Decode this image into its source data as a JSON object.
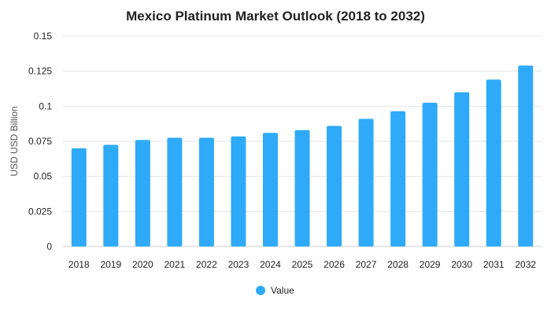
{
  "chart_data": {
    "type": "bar",
    "title": "Mexico Platinum Market Outlook (2018 to 2032)",
    "xlabel": "",
    "ylabel": "USD USD Billion",
    "categories": [
      "2018",
      "2019",
      "2020",
      "2021",
      "2022",
      "2023",
      "2024",
      "2025",
      "2026",
      "2027",
      "2028",
      "2029",
      "2030",
      "2031",
      "2032"
    ],
    "series": [
      {
        "name": "Value",
        "values": [
          0.07,
          0.0725,
          0.076,
          0.0775,
          0.0775,
          0.0785,
          0.081,
          0.083,
          0.086,
          0.091,
          0.0965,
          0.1025,
          0.11,
          0.119,
          0.129
        ]
      }
    ],
    "ylim": [
      0,
      0.15
    ],
    "yticks": [
      "0",
      "0.025",
      "0.05",
      "0.075",
      "0.1",
      "0.125",
      "0.15"
    ],
    "grid": true,
    "legend_position": "bottom-center",
    "colors": {
      "bar": "#2eaaf9",
      "grid": "#e6e6e6",
      "text": "#222222"
    }
  }
}
